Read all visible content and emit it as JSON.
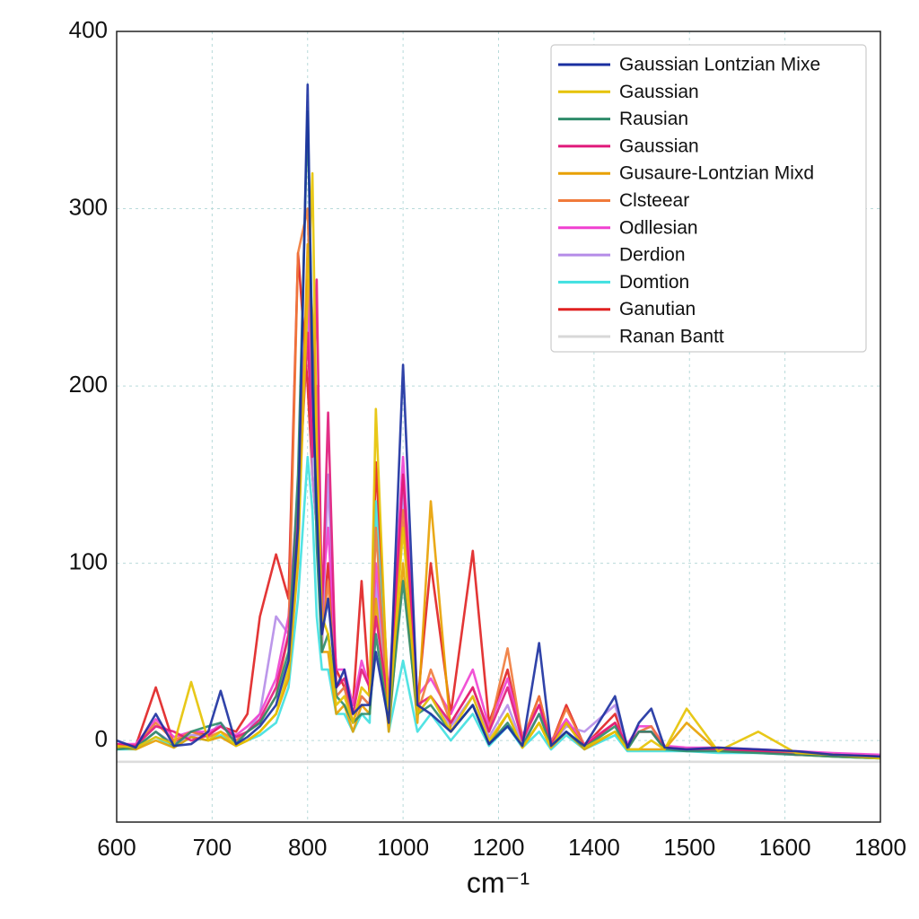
{
  "chart_data": {
    "type": "line",
    "x_label": "cm⁻¹",
    "xlim": [
      600,
      1800
    ],
    "xticks": [
      600,
      700,
      800,
      1000,
      1200,
      1400,
      1500,
      1600,
      1800
    ],
    "ylim": [
      -46,
      400
    ],
    "yticks": [
      0,
      100,
      200,
      300,
      400
    ],
    "grid": true,
    "legend": "upper right",
    "x": [
      600,
      620,
      641,
      660,
      678,
      696,
      709,
      725,
      737,
      750,
      767,
      780,
      790,
      800,
      810,
      819,
      830,
      843,
      860,
      877,
      895,
      913,
      930,
      943,
      970,
      1000,
      1030,
      1058,
      1100,
      1146,
      1180,
      1219,
      1250,
      1285,
      1310,
      1342,
      1380,
      1422,
      1435,
      1447,
      1460,
      1474,
      1497,
      1530,
      1572,
      1623,
      1700,
      1800
    ],
    "series": [
      {
        "name": "Gaussian Lontzian Mixe",
        "color": "#1a2fa0",
        "values": [
          0,
          -4,
          15,
          -3,
          -2,
          5,
          28,
          -2,
          2,
          8,
          20,
          45,
          120,
          370,
          200,
          130,
          60,
          80,
          30,
          40,
          15,
          20,
          20,
          50,
          10,
          212,
          20,
          15,
          5,
          20,
          -2,
          8,
          -3,
          55,
          -3,
          5,
          -3,
          25,
          -4,
          10,
          18,
          -4,
          -5,
          -4,
          -5,
          -6,
          -8,
          -9
        ]
      },
      {
        "name": "Gaussian",
        "color": "#e6c200",
        "values": [
          -3,
          -4,
          2,
          -2,
          33,
          0,
          5,
          -3,
          0,
          5,
          15,
          40,
          110,
          250,
          320,
          170,
          70,
          60,
          20,
          25,
          10,
          30,
          25,
          187,
          10,
          120,
          15,
          25,
          5,
          25,
          0,
          15,
          -4,
          10,
          -4,
          10,
          -4,
          5,
          -5,
          -5,
          0,
          -5,
          18,
          -6,
          5,
          -7,
          -8,
          -10
        ]
      },
      {
        "name": "Rausian",
        "color": "#2e8b6a",
        "values": [
          -5,
          -4,
          5,
          -3,
          5,
          8,
          10,
          -2,
          5,
          10,
          25,
          50,
          150,
          355,
          220,
          110,
          50,
          60,
          25,
          20,
          10,
          15,
          15,
          60,
          10,
          90,
          15,
          20,
          5,
          20,
          -2,
          10,
          -3,
          15,
          -3,
          5,
          -4,
          8,
          -5,
          5,
          5,
          -5,
          -6,
          -6,
          -7,
          -8,
          -9,
          -10
        ]
      },
      {
        "name": "Gaussian",
        "color": "#e0197a",
        "values": [
          -2,
          -3,
          8,
          5,
          0,
          3,
          8,
          2,
          5,
          12,
          30,
          60,
          130,
          230,
          160,
          260,
          70,
          185,
          30,
          35,
          15,
          40,
          30,
          70,
          20,
          150,
          20,
          25,
          10,
          30,
          5,
          30,
          0,
          20,
          -2,
          10,
          -3,
          10,
          -3,
          5,
          5,
          -4,
          -5,
          -5,
          -6,
          -8,
          -8,
          -9
        ]
      },
      {
        "name": "Gusaure-Lontzian Mixd",
        "color": "#e8a000",
        "values": [
          -4,
          -5,
          0,
          -4,
          2,
          0,
          2,
          -3,
          0,
          5,
          15,
          35,
          100,
          280,
          240,
          150,
          50,
          50,
          15,
          20,
          5,
          20,
          15,
          80,
          5,
          100,
          10,
          135,
          5,
          20,
          -2,
          15,
          -4,
          10,
          -4,
          5,
          -5,
          5,
          -5,
          -5,
          -5,
          -5,
          10,
          -6,
          -6,
          -8,
          -9,
          -10
        ]
      },
      {
        "name": "Clsteear",
        "color": "#f07a3a",
        "values": [
          -3,
          -3,
          10,
          0,
          5,
          2,
          5,
          0,
          5,
          10,
          25,
          60,
          275,
          300,
          200,
          140,
          60,
          90,
          25,
          30,
          10,
          25,
          20,
          120,
          10,
          130,
          15,
          40,
          10,
          30,
          5,
          52,
          0,
          25,
          -2,
          18,
          -3,
          10,
          -4,
          5,
          8,
          -4,
          -5,
          -5,
          -6,
          -7,
          -8,
          -9
        ]
      },
      {
        "name": "Odllesian",
        "color": "#f040d0",
        "values": [
          -2,
          -2,
          12,
          2,
          5,
          5,
          8,
          3,
          8,
          15,
          35,
          70,
          140,
          260,
          180,
          200,
          80,
          120,
          40,
          40,
          20,
          45,
          30,
          100,
          25,
          160,
          25,
          35,
          15,
          40,
          8,
          35,
          3,
          20,
          0,
          12,
          -2,
          10,
          -2,
          8,
          8,
          -3,
          -4,
          -4,
          -5,
          -6,
          -7,
          -8
        ]
      },
      {
        "name": "Derdion",
        "color": "#b58ce8",
        "values": [
          -4,
          -4,
          5,
          -2,
          3,
          3,
          10,
          0,
          5,
          15,
          70,
          60,
          120,
          250,
          150,
          120,
          50,
          150,
          25,
          30,
          10,
          25,
          20,
          90,
          15,
          140,
          15,
          25,
          8,
          25,
          2,
          20,
          -2,
          15,
          -3,
          8,
          5,
          20,
          -4,
          5,
          8,
          -4,
          -5,
          -5,
          -6,
          -7,
          -8,
          -9
        ]
      },
      {
        "name": "Domtion",
        "color": "#3fe0e0",
        "values": [
          -5,
          -5,
          2,
          -4,
          2,
          0,
          3,
          -3,
          0,
          3,
          10,
          30,
          80,
          160,
          130,
          70,
          40,
          40,
          15,
          15,
          5,
          15,
          10,
          135,
          5,
          45,
          5,
          15,
          0,
          15,
          -3,
          8,
          -4,
          5,
          -5,
          3,
          -5,
          3,
          -6,
          -6,
          -6,
          -6,
          -6,
          -7,
          -7,
          -8,
          -9,
          -10
        ]
      },
      {
        "name": "Ganutian",
        "color": "#e02020",
        "values": [
          -3,
          -3,
          30,
          -2,
          5,
          3,
          8,
          5,
          15,
          70,
          105,
          80,
          275,
          200,
          150,
          120,
          60,
          100,
          40,
          30,
          20,
          90,
          25,
          157,
          20,
          150,
          20,
          100,
          15,
          107,
          10,
          40,
          0,
          25,
          -2,
          20,
          -3,
          15,
          -4,
          5,
          5,
          -4,
          -5,
          -5,
          -6,
          -7,
          -8,
          -9
        ]
      },
      {
        "name": "Ranan Bantt",
        "color": "#d8d8d8",
        "values": [
          -12,
          -12,
          -12,
          -12,
          -12,
          -12,
          -12,
          -12,
          -12,
          -12,
          -12,
          -12,
          -12,
          -12,
          -12,
          -12,
          -12,
          -12,
          -12,
          -12,
          -12,
          -12,
          -12,
          -12,
          -12,
          -12,
          -12,
          -12,
          -12,
          -12,
          -12,
          -12,
          -12,
          -12,
          -12,
          -12,
          -12,
          -12,
          -12,
          -12,
          -12,
          -12,
          -12,
          -12,
          -12,
          -12,
          -12,
          -12
        ]
      }
    ]
  }
}
